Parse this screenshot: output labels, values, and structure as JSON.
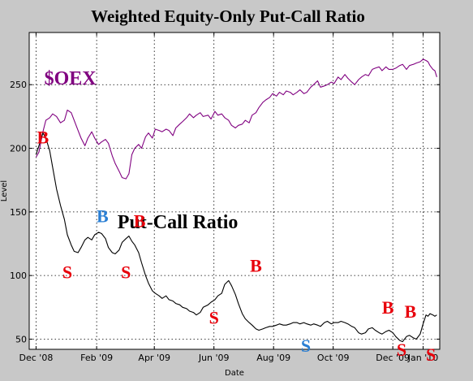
{
  "chart_data": {
    "type": "line",
    "title": "Weighted Equity-Only Put-Call Ratio",
    "xlabel": "Date",
    "ylabel": "Level",
    "xlim": [
      "2008-11-24",
      "2010-01-18"
    ],
    "ylim": [
      42,
      291
    ],
    "grid": true,
    "x_ticks": [
      {
        "date": "2008-12-01",
        "label": "Dec '08"
      },
      {
        "date": "2009-02-01",
        "label": "Feb '09"
      },
      {
        "date": "2009-04-01",
        "label": "Apr '09"
      },
      {
        "date": "2009-06-01",
        "label": "Jun '09"
      },
      {
        "date": "2009-08-01",
        "label": "Aug '09"
      },
      {
        "date": "2009-10-01",
        "label": "Oct '09"
      },
      {
        "date": "2009-12-01",
        "label": "Dec '09"
      },
      {
        "date": "2010-01-01",
        "label": "Jan '10"
      }
    ],
    "y_ticks": [
      50,
      100,
      150,
      200,
      250
    ],
    "annotations": [
      {
        "text": "$OEX",
        "x": "2009-01-05",
        "y": 250,
        "color": "#800080",
        "kind": "label"
      },
      {
        "text": "Put-Call Ratio",
        "x": "2009-04-25",
        "y": 137,
        "color": "#000000",
        "kind": "label"
      },
      {
        "text": "B",
        "x": "2008-12-08",
        "y": 204,
        "color": "#e8000b",
        "kind": "signal"
      },
      {
        "text": "S",
        "x": "2009-01-02",
        "y": 98,
        "color": "#e8000b",
        "kind": "signal"
      },
      {
        "text": "B",
        "x": "2009-02-07",
        "y": 142,
        "color": "#2a7fd4",
        "kind": "signal"
      },
      {
        "text": "S",
        "x": "2009-03-03",
        "y": 98,
        "color": "#e8000b",
        "kind": "signal"
      },
      {
        "text": "B",
        "x": "2009-03-17",
        "y": 138,
        "color": "#e8000b",
        "kind": "signal"
      },
      {
        "text": "S",
        "x": "2009-06-01",
        "y": 62,
        "color": "#e8000b",
        "kind": "signal"
      },
      {
        "text": "B",
        "x": "2009-07-14",
        "y": 103,
        "color": "#e8000b",
        "kind": "signal"
      },
      {
        "text": "S",
        "x": "2009-09-03",
        "y": 40,
        "color": "#2a7fd4",
        "kind": "signal"
      },
      {
        "text": "B",
        "x": "2009-11-26",
        "y": 70,
        "color": "#e8000b",
        "kind": "signal"
      },
      {
        "text": "B",
        "x": "2009-12-19",
        "y": 67,
        "color": "#e8000b",
        "kind": "signal"
      },
      {
        "text": "S",
        "x": "2009-12-10",
        "y": 37,
        "color": "#e8000b",
        "kind": "signal"
      },
      {
        "text": "S",
        "x": "2010-01-09",
        "y": 33,
        "color": "#e8000b",
        "kind": "signal"
      }
    ],
    "series": [
      {
        "color": "#800080",
        "x": [
          "2008-12-01",
          "2008-12-04",
          "2008-12-08",
          "2008-12-11",
          "2008-12-15",
          "2008-12-18",
          "2008-12-22",
          "2008-12-26",
          "2008-12-30",
          "2009-01-02",
          "2009-01-06",
          "2009-01-09",
          "2009-01-13",
          "2009-01-16",
          "2009-01-20",
          "2009-01-23",
          "2009-01-27",
          "2009-01-30",
          "2009-02-03",
          "2009-02-06",
          "2009-02-10",
          "2009-02-13",
          "2009-02-17",
          "2009-02-20",
          "2009-02-24",
          "2009-02-27",
          "2009-03-03",
          "2009-03-06",
          "2009-03-09",
          "2009-03-12",
          "2009-03-16",
          "2009-03-19",
          "2009-03-23",
          "2009-03-26",
          "2009-03-30",
          "2009-04-02",
          "2009-04-06",
          "2009-04-09",
          "2009-04-13",
          "2009-04-16",
          "2009-04-20",
          "2009-04-23",
          "2009-04-27",
          "2009-04-30",
          "2009-05-04",
          "2009-05-07",
          "2009-05-11",
          "2009-05-14",
          "2009-05-18",
          "2009-05-21",
          "2009-05-26",
          "2009-05-29",
          "2009-06-02",
          "2009-06-05",
          "2009-06-09",
          "2009-06-12",
          "2009-06-16",
          "2009-06-19",
          "2009-06-23",
          "2009-06-26",
          "2009-06-30",
          "2009-07-03",
          "2009-07-07",
          "2009-07-10",
          "2009-07-14",
          "2009-07-17",
          "2009-07-21",
          "2009-07-24",
          "2009-07-28",
          "2009-07-31",
          "2009-08-04",
          "2009-08-07",
          "2009-08-11",
          "2009-08-14",
          "2009-08-18",
          "2009-08-21",
          "2009-08-25",
          "2009-08-28",
          "2009-09-01",
          "2009-09-04",
          "2009-09-08",
          "2009-09-11",
          "2009-09-15",
          "2009-09-18",
          "2009-09-22",
          "2009-09-25",
          "2009-09-29",
          "2009-10-02",
          "2009-10-06",
          "2009-10-09",
          "2009-10-13",
          "2009-10-16",
          "2009-10-20",
          "2009-10-23",
          "2009-10-27",
          "2009-10-30",
          "2009-11-03",
          "2009-11-06",
          "2009-11-10",
          "2009-11-13",
          "2009-11-17",
          "2009-11-20",
          "2009-11-24",
          "2009-11-27",
          "2009-12-01",
          "2009-12-04",
          "2009-12-08",
          "2009-12-11",
          "2009-12-15",
          "2009-12-18",
          "2009-12-22",
          "2009-12-25",
          "2009-12-29",
          "2010-01-01",
          "2010-01-04",
          "2010-01-06",
          "2010-01-08",
          "2010-01-11",
          "2010-01-13",
          "2010-01-15"
        ],
        "y": [
          193,
          197,
          213,
          222,
          224,
          227,
          225,
          220,
          222,
          230,
          228,
          222,
          214,
          208,
          202,
          208,
          213,
          208,
          203,
          205,
          207,
          204,
          194,
          188,
          182,
          177,
          176,
          180,
          195,
          200,
          203,
          200,
          209,
          212,
          208,
          215,
          214,
          213,
          215,
          214,
          210,
          216,
          219,
          221,
          224,
          227,
          224,
          226,
          228,
          225,
          226,
          223,
          229,
          226,
          227,
          224,
          222,
          218,
          216,
          218,
          219,
          222,
          220,
          226,
          228,
          232,
          236,
          238,
          240,
          243,
          241,
          244,
          242,
          245,
          244,
          242,
          244,
          246,
          243,
          244,
          248,
          250,
          253,
          248,
          249,
          250,
          252,
          251,
          256,
          254,
          258,
          255,
          252,
          250,
          254,
          256,
          258,
          257,
          262,
          263,
          264,
          261,
          264,
          262,
          262,
          263,
          265,
          266,
          262,
          265,
          266,
          267,
          268,
          270,
          269,
          268,
          265,
          262,
          261,
          256
        ]
      },
      {
        "color": "#000000",
        "x": [
          "2008-12-01",
          "2008-12-04",
          "2008-12-08",
          "2008-12-11",
          "2008-12-15",
          "2008-12-18",
          "2008-12-22",
          "2008-12-26",
          "2008-12-30",
          "2009-01-02",
          "2009-01-06",
          "2009-01-09",
          "2009-01-13",
          "2009-01-16",
          "2009-01-20",
          "2009-01-23",
          "2009-01-27",
          "2009-01-30",
          "2009-02-03",
          "2009-02-06",
          "2009-02-10",
          "2009-02-13",
          "2009-02-17",
          "2009-02-20",
          "2009-02-24",
          "2009-02-27",
          "2009-03-03",
          "2009-03-06",
          "2009-03-09",
          "2009-03-12",
          "2009-03-16",
          "2009-03-19",
          "2009-03-23",
          "2009-03-26",
          "2009-03-30",
          "2009-04-02",
          "2009-04-06",
          "2009-04-09",
          "2009-04-13",
          "2009-04-16",
          "2009-04-20",
          "2009-04-23",
          "2009-04-27",
          "2009-04-30",
          "2009-05-04",
          "2009-05-07",
          "2009-05-11",
          "2009-05-14",
          "2009-05-18",
          "2009-05-21",
          "2009-05-26",
          "2009-05-29",
          "2009-06-02",
          "2009-06-05",
          "2009-06-09",
          "2009-06-12",
          "2009-06-16",
          "2009-06-19",
          "2009-06-23",
          "2009-06-26",
          "2009-06-30",
          "2009-07-03",
          "2009-07-07",
          "2009-07-10",
          "2009-07-14",
          "2009-07-17",
          "2009-07-21",
          "2009-07-24",
          "2009-07-28",
          "2009-07-31",
          "2009-08-04",
          "2009-08-07",
          "2009-08-11",
          "2009-08-14",
          "2009-08-18",
          "2009-08-21",
          "2009-08-25",
          "2009-08-28",
          "2009-09-01",
          "2009-09-04",
          "2009-09-08",
          "2009-09-11",
          "2009-09-15",
          "2009-09-18",
          "2009-09-22",
          "2009-09-25",
          "2009-09-29",
          "2009-10-02",
          "2009-10-06",
          "2009-10-09",
          "2009-10-13",
          "2009-10-16",
          "2009-10-20",
          "2009-10-23",
          "2009-10-27",
          "2009-10-30",
          "2009-11-03",
          "2009-11-06",
          "2009-11-10",
          "2009-11-13",
          "2009-11-17",
          "2009-11-20",
          "2009-11-24",
          "2009-11-27",
          "2009-12-01",
          "2009-12-04",
          "2009-12-08",
          "2009-12-11",
          "2009-12-15",
          "2009-12-18",
          "2009-12-22",
          "2009-12-25",
          "2009-12-29",
          "2010-01-01",
          "2010-01-04",
          "2010-01-06",
          "2010-01-08",
          "2010-01-11",
          "2010-01-13",
          "2010-01-15"
        ],
        "y": [
          195,
          202,
          212,
          208,
          198,
          185,
          168,
          155,
          144,
          132,
          124,
          119,
          118,
          122,
          128,
          130,
          128,
          132,
          134,
          133,
          129,
          122,
          118,
          117,
          120,
          126,
          129,
          131,
          127,
          124,
          118,
          110,
          100,
          94,
          88,
          86,
          84,
          82,
          84,
          81,
          80,
          78,
          77,
          75,
          74,
          72,
          71,
          69,
          71,
          75,
          77,
          79,
          81,
          84,
          86,
          93,
          96,
          92,
          85,
          78,
          70,
          66,
          63,
          61,
          58,
          57,
          58,
          59,
          60,
          60,
          61,
          62,
          61,
          61,
          62,
          63,
          63,
          62,
          63,
          62,
          61,
          62,
          61,
          60,
          63,
          64,
          62,
          63,
          63,
          64,
          63,
          62,
          60,
          59,
          55,
          54,
          55,
          58,
          59,
          57,
          55,
          54,
          56,
          57,
          55,
          52,
          49,
          48,
          52,
          53,
          51,
          50,
          54,
          62,
          69,
          68,
          70,
          69,
          68,
          69
        ]
      }
    ]
  }
}
